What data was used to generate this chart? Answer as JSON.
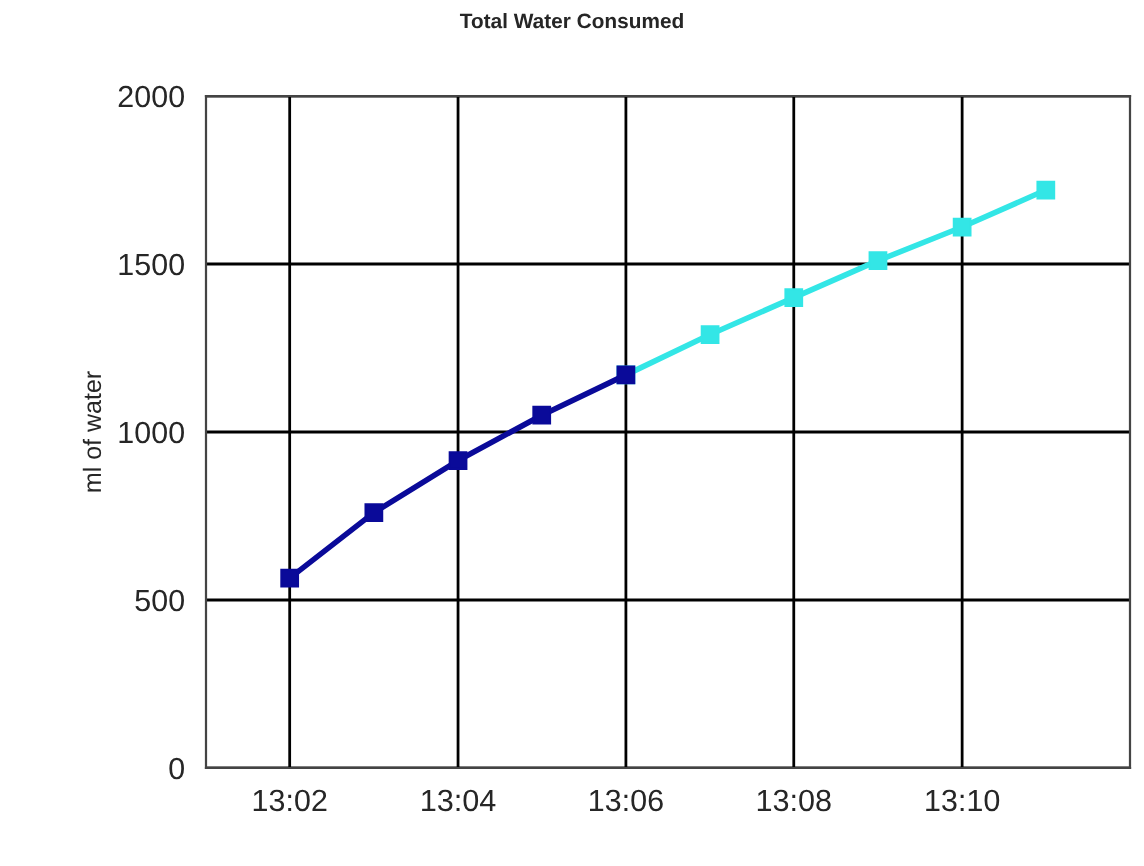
{
  "chart_data": {
    "type": "line",
    "title": "Total Water Consumed",
    "ylabel": "ml of water",
    "series": [
      {
        "color": "#33e6e6",
        "x": [
          13.1,
          13.1167,
          13.1333,
          13.15,
          13.1667,
          13.1833
        ],
        "values": [
          1170,
          1290,
          1400,
          1510,
          1610,
          1720
        ]
      },
      {
        "color": "#0a0a99",
        "x": [
          13.0333,
          13.05,
          13.0667,
          13.0833,
          13.1
        ],
        "values": [
          565,
          760,
          915,
          1050,
          1170
        ]
      }
    ],
    "xlim": [
      13.0167,
      13.2
    ],
    "xticks": [
      {
        "value": 13.0333,
        "label": "13:02"
      },
      {
        "value": 13.0667,
        "label": "13:04"
      },
      {
        "value": 13.1,
        "label": "13:06"
      },
      {
        "value": 13.1333,
        "label": "13:08"
      },
      {
        "value": 13.1667,
        "label": "13:10"
      }
    ],
    "ylim": [
      0,
      2000
    ],
    "yticks": [
      0,
      500,
      1000,
      1500,
      2000
    ],
    "grid": true,
    "marker": "square",
    "line_style": "solid"
  }
}
